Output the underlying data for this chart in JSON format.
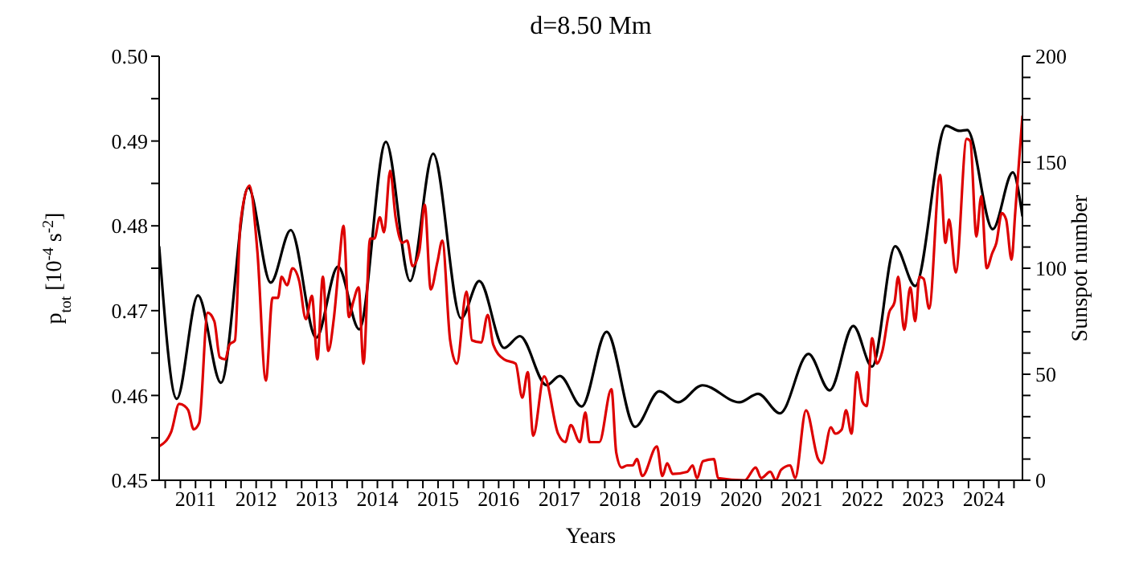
{
  "chart_data": {
    "type": "line",
    "title": "d=8.50 Mm",
    "xlabel": "Years",
    "ylabel": "p$_{tot}$ [10$^{-4}$ s$^{-2}$]",
    "y2label": "Sunspot number",
    "xlim": [
      2010.4,
      2024.64
    ],
    "xticks": [
      {
        "value": 2010.5,
        "label": null
      },
      {
        "value": 2010.75,
        "label": null
      },
      2011,
      {
        "value": 2011.25,
        "label": null
      },
      {
        "value": 2011.5,
        "label": null
      },
      {
        "value": 2011.75,
        "label": null
      },
      2012,
      {
        "value": 2012.25,
        "label": null
      },
      {
        "value": 2012.5,
        "label": null
      },
      {
        "value": 2012.75,
        "label": null
      },
      2013,
      {
        "value": 2013.25,
        "label": null
      },
      {
        "value": 2013.5,
        "label": null
      },
      {
        "value": 2013.75,
        "label": null
      },
      2014,
      {
        "value": 2014.25,
        "label": null
      },
      {
        "value": 2014.5,
        "label": null
      },
      {
        "value": 2014.75,
        "label": null
      },
      2015,
      {
        "value": 2015.25,
        "label": null
      },
      {
        "value": 2015.5,
        "label": null
      },
      {
        "value": 2015.75,
        "label": null
      },
      2016,
      {
        "value": 2016.25,
        "label": null
      },
      {
        "value": 2016.5,
        "label": null
      },
      {
        "value": 2016.75,
        "label": null
      },
      2017,
      {
        "value": 2017.25,
        "label": null
      },
      {
        "value": 2017.5,
        "label": null
      },
      {
        "value": 2017.75,
        "label": null
      },
      2018,
      {
        "value": 2018.25,
        "label": null
      },
      {
        "value": 2018.5,
        "label": null
      },
      {
        "value": 2018.75,
        "label": null
      },
      2019,
      {
        "value": 2019.25,
        "label": null
      },
      {
        "value": 2019.5,
        "label": null
      },
      {
        "value": 2019.75,
        "label": null
      },
      2020,
      {
        "value": 2020.25,
        "label": null
      },
      {
        "value": 2020.5,
        "label": null
      },
      {
        "value": 2020.75,
        "label": null
      },
      2021,
      {
        "value": 2021.25,
        "label": null
      },
      {
        "value": 2021.5,
        "label": null
      },
      {
        "value": 2021.75,
        "label": null
      },
      2022,
      {
        "value": 2022.25,
        "label": null
      },
      {
        "value": 2022.5,
        "label": null
      },
      {
        "value": 2022.75,
        "label": null
      },
      2023,
      {
        "value": 2023.25,
        "label": null
      },
      {
        "value": 2023.5,
        "label": null
      },
      {
        "value": 2023.75,
        "label": null
      },
      2024,
      {
        "value": 2024.25,
        "label": null
      },
      {
        "value": 2024.5,
        "label": null
      }
    ],
    "ylim": [
      0.45,
      0.5
    ],
    "yticks": [
      0.45,
      {
        "value": 0.455,
        "label": null
      },
      0.46,
      {
        "value": 0.465,
        "label": null
      },
      0.47,
      {
        "value": 0.475,
        "label": null
      },
      0.48,
      {
        "value": 0.485,
        "label": null
      },
      0.49,
      {
        "value": 0.495,
        "label": null
      },
      {
        "value": 0.5,
        "label": "0.50"
      }
    ],
    "y2lim": [
      0,
      200
    ],
    "y2ticks": [
      0,
      {
        "value": 10,
        "label": null
      },
      {
        "value": 20,
        "label": null
      },
      {
        "value": 30,
        "label": null
      },
      {
        "value": 40,
        "label": null
      },
      50,
      {
        "value": 60,
        "label": null
      },
      {
        "value": 70,
        "label": null
      },
      {
        "value": 80,
        "label": null
      },
      {
        "value": 90,
        "label": null
      },
      100,
      {
        "value": 110,
        "label": null
      },
      {
        "value": 120,
        "label": null
      },
      {
        "value": 130,
        "label": null
      },
      {
        "value": 140,
        "label": null
      },
      150,
      {
        "value": 160,
        "label": null
      },
      {
        "value": 170,
        "label": null
      },
      {
        "value": 180,
        "label": null
      },
      {
        "value": 190,
        "label": null
      },
      200
    ],
    "line_style": "solid",
    "series": [
      {
        "color": "#000000",
        "x": [
          2010.4,
          2010.69,
          2011.04,
          2011.42,
          2011.87,
          2012.24,
          2012.57,
          2012.99,
          2013.35,
          2013.7,
          2014.14,
          2014.54,
          2014.92,
          2015.38,
          2015.68,
          2016.09,
          2016.35,
          2016.79,
          2017.01,
          2017.37,
          2017.78,
          2018.25,
          2018.65,
          2018.96,
          2019.36,
          2019.97,
          2020.28,
          2020.64,
          2021.11,
          2021.46,
          2021.85,
          2022.16,
          2022.54,
          2022.87,
          2023.38,
          2023.6,
          2023.73,
          2024.15,
          2024.48,
          2024.64
        ],
        "values": [
          0.4776,
          0.4596,
          0.4718,
          0.4615,
          0.4845,
          0.4733,
          0.4795,
          0.4668,
          0.4752,
          0.4678,
          0.4899,
          0.4735,
          0.4885,
          0.4691,
          0.4735,
          0.4656,
          0.467,
          0.4612,
          0.4623,
          0.4587,
          0.4675,
          0.4563,
          0.4605,
          0.4592,
          0.4612,
          0.4592,
          0.4602,
          0.4579,
          0.4649,
          0.4606,
          0.4682,
          0.4634,
          0.4776,
          0.4729,
          0.4918,
          0.4912,
          0.4913,
          0.4796,
          0.4863,
          0.4811
        ]
      },
      {
        "color": "#dd0000",
        "axis": "y2",
        "x": [
          2010.4,
          2010.6,
          2010.73,
          2010.82,
          2010.88,
          2010.97,
          2011.06,
          2011.2,
          2011.31,
          2011.4,
          2011.49,
          2011.56,
          2011.65,
          2011.74,
          2011.89,
          2012.02,
          2012.16,
          2012.27,
          2012.36,
          2012.42,
          2012.51,
          2012.6,
          2012.71,
          2012.82,
          2012.92,
          2013.01,
          2013.1,
          2013.19,
          2013.28,
          2013.37,
          2013.44,
          2013.53,
          2013.6,
          2013.69,
          2013.77,
          2013.88,
          2013.95,
          2014.04,
          2014.11,
          2014.21,
          2014.3,
          2014.41,
          2014.49,
          2014.58,
          2014.69,
          2014.78,
          2014.88,
          2014.99,
          2015.07,
          2015.2,
          2015.31,
          2015.47,
          2015.56,
          2015.71,
          2015.82,
          2015.91,
          2016.09,
          2016.28,
          2016.39,
          2016.48,
          2016.57,
          2016.75,
          2016.98,
          2017.1,
          2017.19,
          2017.34,
          2017.43,
          2017.5,
          2017.66,
          2017.86,
          2017.94,
          2018.03,
          2018.12,
          2018.21,
          2018.28,
          2018.37,
          2018.61,
          2018.7,
          2018.78,
          2018.87,
          2019.11,
          2019.2,
          2019.27,
          2019.37,
          2019.55,
          2019.62,
          2020.06,
          2020.24,
          2020.33,
          2020.48,
          2020.57,
          2020.66,
          2020.81,
          2020.89,
          2021.07,
          2021.27,
          2021.33,
          2021.48,
          2021.55,
          2021.66,
          2021.73,
          2021.82,
          2021.91,
          2022.0,
          2022.07,
          2022.16,
          2022.24,
          2022.33,
          2022.44,
          2022.53,
          2022.59,
          2022.69,
          2022.79,
          2022.87,
          2022.94,
          2023.01,
          2023.1,
          2023.28,
          2023.37,
          2023.43,
          2023.54,
          2023.72,
          2023.78,
          2023.88,
          2023.96,
          2024.05,
          2024.14,
          2024.21,
          2024.3,
          2024.37,
          2024.46,
          2024.52,
          2024.64
        ],
        "values": [
          16,
          23,
          36,
          35,
          33,
          24,
          27,
          79,
          75,
          58,
          57,
          64,
          66,
          121,
          139,
          108,
          47,
          86,
          86,
          96,
          92,
          100,
          94,
          76,
          87,
          57,
          96,
          61,
          76,
          103,
          120,
          77,
          84,
          91,
          55,
          114,
          114,
          124,
          117,
          146,
          124,
          112,
          113,
          101,
          108,
          130,
          90,
          103,
          113,
          66,
          55,
          89,
          66,
          65,
          78,
          64,
          57,
          55,
          39,
          51,
          21,
          49,
          22,
          18,
          26,
          18,
          32,
          18,
          18,
          43,
          13,
          6,
          7,
          7,
          10,
          2,
          16,
          2,
          8,
          3,
          4,
          7,
          1,
          9,
          10,
          1,
          0,
          6,
          1,
          4,
          0,
          5,
          7,
          1,
          33,
          10,
          8,
          25,
          22,
          24,
          33,
          22,
          51,
          37,
          35,
          67,
          55,
          61,
          79,
          84,
          96,
          71,
          91,
          75,
          96,
          95,
          81,
          144,
          112,
          123,
          98,
          161,
          160,
          115,
          134,
          100,
          107,
          112,
          126,
          123,
          104,
          126,
          172
        ]
      }
    ]
  }
}
